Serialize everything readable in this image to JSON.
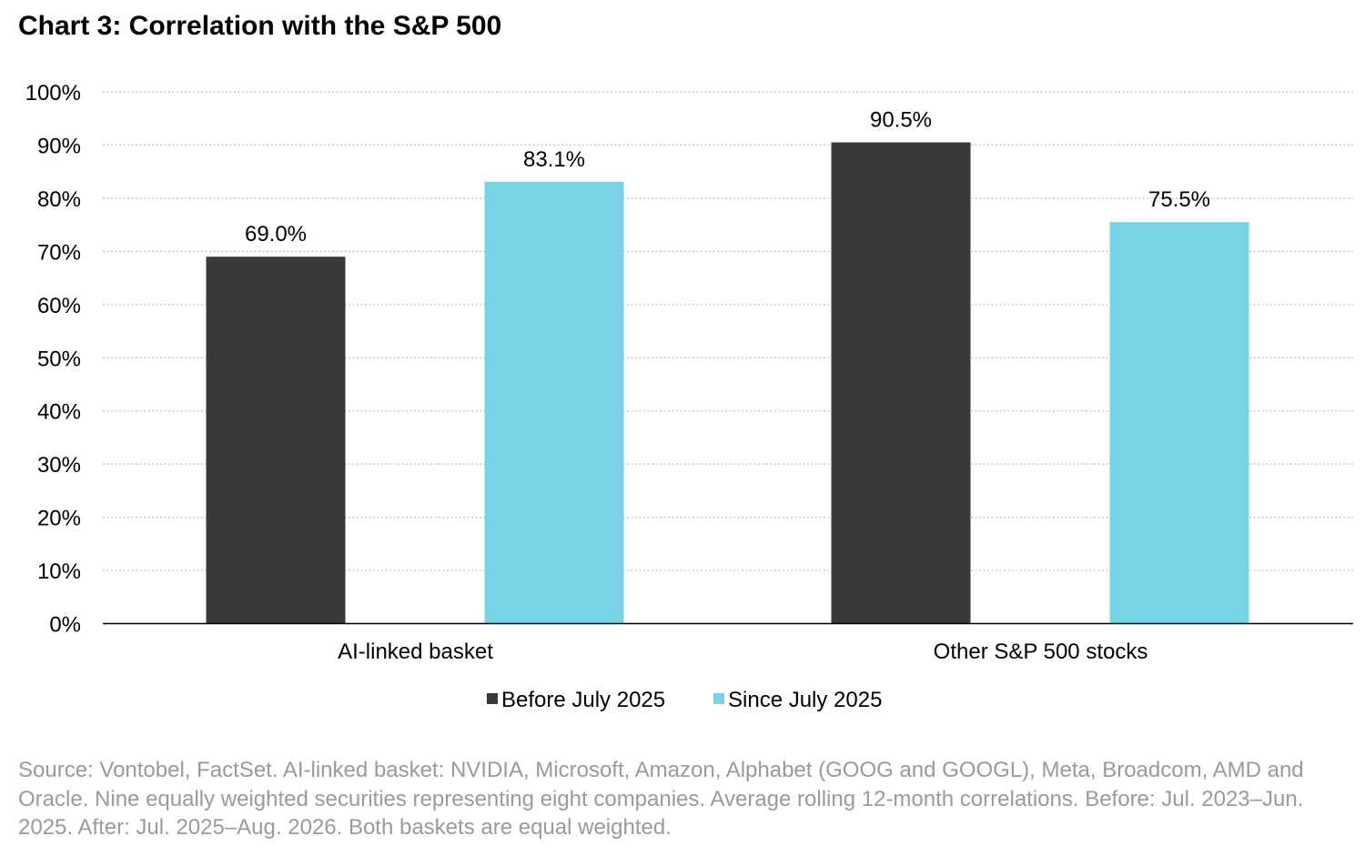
{
  "title": "Chart 3: Correlation with the S&P 500",
  "chart_data": {
    "type": "bar",
    "categories": [
      "AI-linked basket",
      "Other S&P 500 stocks"
    ],
    "series": [
      {
        "name": "Before July 2025",
        "values": [
          69.0,
          90.5
        ],
        "labels": [
          "69.0%",
          "90.5%"
        ],
        "color": "#393a37"
      },
      {
        "name": "Since July 2025",
        "values": [
          83.1,
          75.5
        ],
        "labels": [
          "83.1%",
          "75.5%"
        ],
        "color": "#78d3e4"
      }
    ],
    "ylim": [
      0,
      100
    ],
    "yticks": [
      0,
      10,
      20,
      30,
      40,
      50,
      60,
      70,
      80,
      90,
      100
    ],
    "ytick_labels": [
      "0%",
      "10%",
      "20%",
      "30%",
      "40%",
      "50%",
      "60%",
      "70%",
      "80%",
      "90%",
      "100%"
    ],
    "grid": "horizontal dotted",
    "legend": "bottom",
    "xlabel": "",
    "ylabel": ""
  },
  "source": "Source: Vontobel, FactSet. AI-linked basket: NVIDIA, Microsoft, Amazon, Alphabet (GOOG and GOOGL), Meta, Broadcom, AMD and Oracle. Nine equally weighted securities representing eight companies. Average rolling 12-month correlations. Before: Jul. 2023–Jun. 2025. After: Jul. 2025–Aug. 2026. Both baskets are equal weighted."
}
